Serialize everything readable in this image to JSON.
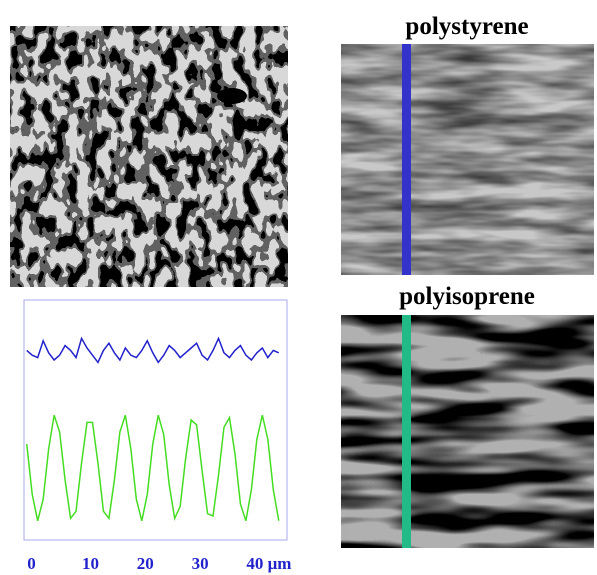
{
  "labels": {
    "top": "polystyrene",
    "bottom": "polyisoprene"
  },
  "chart_data": {
    "type": "line",
    "x": [
      -1,
      0,
      1,
      2,
      3,
      4,
      5,
      6,
      7,
      8,
      9,
      10,
      11,
      12,
      13,
      14,
      15,
      16,
      17,
      18,
      19,
      20,
      21,
      22,
      23,
      24,
      25,
      26,
      27,
      28,
      29,
      30,
      31,
      32,
      33,
      34,
      35,
      36,
      37,
      38,
      39,
      40,
      41,
      42,
      43,
      44,
      45
    ],
    "series": [
      {
        "color": "#2222cc",
        "values": [
          79,
          77,
          76,
          83,
          78,
          75,
          77,
          81,
          79,
          76,
          84,
          80,
          77,
          74,
          79,
          82,
          78,
          75,
          80,
          77,
          76,
          79,
          83,
          78,
          74,
          77,
          81,
          79,
          76,
          78,
          80,
          82,
          77,
          75,
          79,
          84,
          78,
          76,
          79,
          81,
          77,
          75,
          78,
          80,
          76,
          79,
          78
        ]
      },
      {
        "color": "#44dd22",
        "values": [
          40,
          19,
          8,
          17,
          38,
          52,
          45,
          25,
          9,
          12,
          32,
          49,
          49,
          32,
          12,
          9,
          25,
          45,
          52,
          38,
          17,
          8,
          19,
          40,
          52,
          44,
          23,
          9,
          14,
          34,
          50,
          48,
          29,
          11,
          10,
          27,
          47,
          51,
          36,
          15,
          8,
          21,
          42,
          52,
          42,
          21,
          8
        ]
      }
    ],
    "xlim": [
      -1.5,
      46.5
    ],
    "ylim": [
      0,
      100
    ],
    "xticks": [
      0,
      10,
      20,
      30,
      {
        "value": 40,
        "label": "40 μm"
      }
    ]
  }
}
